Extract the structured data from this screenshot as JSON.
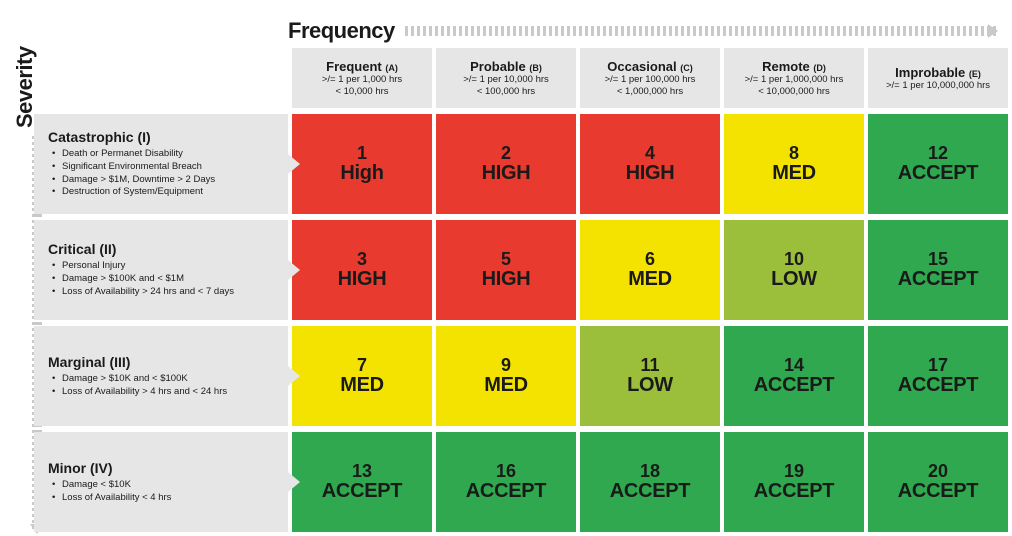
{
  "axis": {
    "frequency_title": "Frequency",
    "severity_title": "Severity"
  },
  "colors": {
    "header_bg": "#e6e6e6",
    "text": "#1a1a1a",
    "dash": "#c9c9c9",
    "high": "#e83a2e",
    "med": "#f4e300",
    "low": "#9bbf3b",
    "accept": "#2fa84f"
  },
  "frequency": [
    {
      "label": "Frequent",
      "code": "(A)",
      "line1": ">/= 1 per 1,000 hrs",
      "line2": "< 10,000 hrs"
    },
    {
      "label": "Probable",
      "code": "(B)",
      "line1": ">/= 1 per 10,000 hrs",
      "line2": "< 100,000 hrs"
    },
    {
      "label": "Occasional",
      "code": "(C)",
      "line1": ">/= 1 per 100,000 hrs",
      "line2": "< 1,000,000 hrs"
    },
    {
      "label": "Remote",
      "code": "(D)",
      "line1": ">/= 1 per 1,000,000 hrs",
      "line2": "< 10,000,000 hrs"
    },
    {
      "label": "Improbable",
      "code": "(E)",
      "line1": ">/= 1 per 10,000,000 hrs",
      "line2": ""
    }
  ],
  "severity": [
    {
      "label": "Catastrophic (I)",
      "bullets": [
        "Death or Permanet Disability",
        "Significant Environmental Breach",
        "Damage > $1M, Downtime > 2 Days",
        "Destruction of System/Equipment"
      ]
    },
    {
      "label": "Critical (II)",
      "bullets": [
        "Personal Injury",
        "Damage > $100K and < $1M",
        "Loss of Availability > 24 hrs and < 7 days"
      ]
    },
    {
      "label": "Marginal (III)",
      "bullets": [
        "Damage > $10K and < $100K",
        "Loss of Availability > 4 hrs and < 24 hrs"
      ]
    },
    {
      "label": "Minor (IV)",
      "bullets": [
        "Damage < $10K",
        "Loss of Availability < 4 hrs"
      ]
    }
  ],
  "matrix": [
    [
      {
        "num": "1",
        "level": "High",
        "color": "high"
      },
      {
        "num": "2",
        "level": "HIGH",
        "color": "high"
      },
      {
        "num": "4",
        "level": "HIGH",
        "color": "high"
      },
      {
        "num": "8",
        "level": "MED",
        "color": "med"
      },
      {
        "num": "12",
        "level": "ACCEPT",
        "color": "accept"
      }
    ],
    [
      {
        "num": "3",
        "level": "HIGH",
        "color": "high"
      },
      {
        "num": "5",
        "level": "HIGH",
        "color": "high"
      },
      {
        "num": "6",
        "level": "MED",
        "color": "med"
      },
      {
        "num": "10",
        "level": "LOW",
        "color": "low"
      },
      {
        "num": "15",
        "level": "ACCEPT",
        "color": "accept"
      }
    ],
    [
      {
        "num": "7",
        "level": "MED",
        "color": "med"
      },
      {
        "num": "9",
        "level": "MED",
        "color": "med"
      },
      {
        "num": "11",
        "level": "LOW",
        "color": "low"
      },
      {
        "num": "14",
        "level": "ACCEPT",
        "color": "accept"
      },
      {
        "num": "17",
        "level": "ACCEPT",
        "color": "accept"
      }
    ],
    [
      {
        "num": "13",
        "level": "ACCEPT",
        "color": "accept"
      },
      {
        "num": "16",
        "level": "ACCEPT",
        "color": "accept"
      },
      {
        "num": "18",
        "level": "ACCEPT",
        "color": "accept"
      },
      {
        "num": "19",
        "level": "ACCEPT",
        "color": "accept"
      },
      {
        "num": "20",
        "level": "ACCEPT",
        "color": "accept"
      }
    ]
  ]
}
